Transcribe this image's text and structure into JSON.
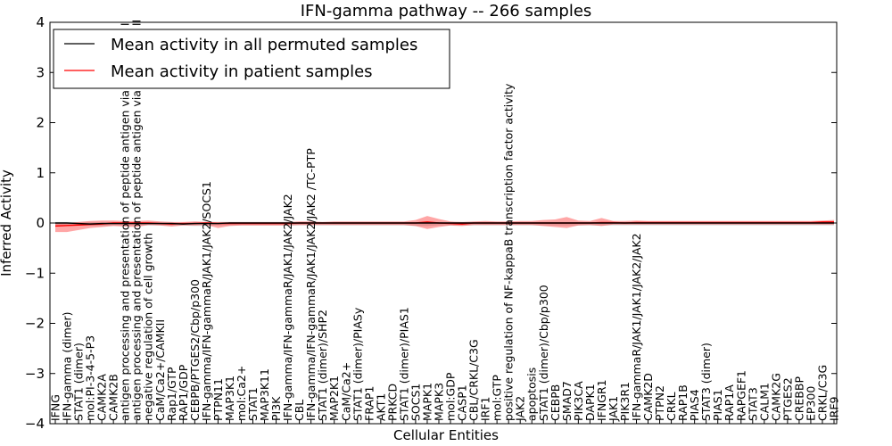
{
  "chart_data": {
    "type": "line",
    "title": "IFN-gamma pathway -- 266 samples",
    "xlabel": "Cellular Entities",
    "ylabel": "Inferred Activity",
    "ylim": [
      -4,
      4
    ],
    "yticks": [
      "−4",
      "−3",
      "−2",
      "−1",
      "0",
      "1",
      "2",
      "3",
      "4"
    ],
    "ytick_values": [
      -4,
      -3,
      -2,
      -1,
      0,
      1,
      2,
      3,
      4
    ],
    "legend": {
      "location": "top-left",
      "entries": [
        {
          "label": "Mean activity in all permuted samples",
          "color": "#000000"
        },
        {
          "label": "Mean activity in patient samples",
          "color": "#ff0000"
        }
      ]
    },
    "categories": [
      "IFNG",
      "IFN-gamma (dimer)",
      "STAT1 (dimer)",
      "mol:PI-3-4-5-P3",
      "CAMK2A",
      "CAMK2B",
      "antigen processing and presentation of peptide antigen via MHC class I",
      "antigen processing and presentation of peptide antigen via MHC class II",
      "negative regulation of cell growth",
      "CaM/Ca2+/CAMKII",
      "Rap1/GTP",
      "RAP1/GDP",
      "CEBPB/PTGES2/Cbp/p300",
      "IFN-gamma/IFN-gammaR/JAK1/JAK2/SOCS1",
      "PTPN11",
      "MAP3K1",
      "mol:Ca2+",
      "STAT1",
      "MAP3K11",
      "PI3K",
      "IFN-gamma/IFN-gammaR/JAK1/JAK2/JAK2",
      "CBL",
      "IFN-gamma/IFN-gammaR/JAK1/JAK2/JAK2 /TC-PTP",
      "STAT1 (dimer)/SHP2",
      "MAP2K1",
      "CaM/Ca2+",
      "STAT1 (dimer)/PIASy",
      "FRAP1",
      "AKT1",
      "PRKCD",
      "STAT1 (dimer)/PIAS1",
      "SOCS1",
      "MAPK1",
      "MAPK3",
      "mol:GDP",
      "CASP1",
      "CBL/CRKL/C3G",
      "IRF1",
      "mol:GTP",
      "positive regulation of NF-kappaB transcription factor activity",
      "JAK2",
      "apoptosis",
      "STAT1 (dimer)/Cbp/p300",
      "CEBPB",
      "SMAD7",
      "PIK3CA",
      "DAPK1",
      "IFNGR1",
      "JAK1",
      "PIK3R1",
      "IFN-gammaR/JAK1/JAK1/JAK2/JAK2",
      "CAMK2D",
      "PTPN2",
      "CRKL",
      "RAP1B",
      "PIAS4",
      "STAT3 (dimer)",
      "PIAS1",
      "RAP1A",
      "RAPGEF1",
      "STAT3",
      "CALM1",
      "CAMK2G",
      "PTGES2",
      "CREBBP",
      "EP300",
      "CRKL/C3G",
      "IRF9"
    ],
    "series": [
      {
        "name": "Mean activity in all permuted samples",
        "color": "#000000",
        "values": [
          0.0,
          0.0,
          -0.01,
          -0.02,
          -0.01,
          -0.01,
          -0.01,
          -0.01,
          -0.01,
          -0.01,
          -0.01,
          -0.02,
          -0.01,
          -0.01,
          -0.01,
          0.0,
          0.0,
          0.0,
          0.0,
          0.0,
          0.0,
          0.0,
          0.0,
          0.0,
          0.0,
          0.0,
          0.0,
          0.0,
          0.0,
          0.0,
          0.0,
          0.0,
          0.0,
          0.0,
          0.0,
          0.0,
          0.0,
          0.0,
          0.0,
          0.0,
          0.0,
          0.0,
          0.0,
          0.0,
          0.0,
          0.0,
          0.0,
          0.0,
          0.0,
          0.0,
          0.0,
          0.0,
          0.0,
          0.0,
          0.0,
          0.0,
          0.0,
          0.0,
          0.0,
          0.0,
          0.0,
          0.0,
          0.0,
          0.0,
          0.0,
          0.0,
          0.0,
          0.0
        ],
        "band_upper": [
          0.02,
          0.02,
          0.02,
          0.02,
          0.02,
          0.02,
          0.02,
          0.02,
          0.02,
          0.02,
          0.02,
          0.01,
          0.02,
          0.02,
          0.02,
          0.02,
          0.02,
          0.02,
          0.02,
          0.02,
          0.02,
          0.02,
          0.02,
          0.02,
          0.02,
          0.02,
          0.02,
          0.02,
          0.02,
          0.02,
          0.02,
          0.02,
          0.02,
          0.02,
          0.02,
          0.02,
          0.02,
          0.02,
          0.02,
          0.02,
          0.02,
          0.02,
          0.02,
          0.02,
          0.02,
          0.02,
          0.02,
          0.02,
          0.02,
          0.02,
          0.02,
          0.02,
          0.02,
          0.02,
          0.02,
          0.02,
          0.02,
          0.02,
          0.02,
          0.02,
          0.02,
          0.02,
          0.02,
          0.02,
          0.02,
          0.02,
          0.02,
          0.02
        ],
        "band_lower": [
          -0.04,
          -0.04,
          -0.05,
          -0.05,
          -0.06,
          -0.05,
          -0.05,
          -0.05,
          -0.05,
          -0.05,
          -0.05,
          -0.05,
          -0.06,
          -0.06,
          -0.05,
          -0.05,
          -0.05,
          -0.05,
          -0.05,
          -0.05,
          -0.05,
          -0.05,
          -0.05,
          -0.05,
          -0.05,
          -0.05,
          -0.05,
          -0.05,
          -0.05,
          -0.05,
          -0.05,
          -0.06,
          -0.06,
          -0.05,
          -0.05,
          -0.05,
          -0.05,
          -0.05,
          -0.05,
          -0.05,
          -0.05,
          -0.05,
          -0.05,
          -0.05,
          -0.05,
          -0.05,
          -0.05,
          -0.05,
          -0.05,
          -0.05,
          -0.05,
          -0.05,
          -0.05,
          -0.05,
          -0.05,
          -0.05,
          -0.05,
          -0.05,
          -0.05,
          -0.05,
          -0.05,
          -0.05,
          -0.05,
          -0.05,
          -0.05,
          -0.05,
          -0.05,
          -0.05
        ]
      },
      {
        "name": "Mean activity in patient samples",
        "color": "#ff0000",
        "values": [
          -0.06,
          -0.05,
          -0.04,
          -0.03,
          -0.02,
          0.0,
          0.0,
          0.0,
          0.0,
          -0.01,
          -0.02,
          -0.01,
          -0.01,
          0.0,
          -0.01,
          -0.01,
          -0.01,
          -0.01,
          -0.01,
          -0.01,
          -0.01,
          0.0,
          0.0,
          0.0,
          0.0,
          0.0,
          0.0,
          0.0,
          0.0,
          0.0,
          0.0,
          0.0,
          0.02,
          0.0,
          -0.01,
          -0.02,
          0.0,
          0.0,
          0.0,
          0.0,
          0.0,
          0.0,
          0.0,
          0.0,
          0.0,
          0.0,
          0.0,
          0.01,
          0.01,
          0.0,
          0.01,
          0.01,
          0.01,
          0.01,
          0.01,
          0.01,
          0.01,
          0.01,
          0.01,
          0.01,
          0.01,
          0.01,
          0.01,
          0.01,
          0.01,
          0.01,
          0.02,
          0.02
        ],
        "band_upper": [
          0.0,
          0.0,
          0.02,
          0.04,
          0.05,
          0.05,
          0.04,
          0.04,
          0.05,
          0.03,
          0.02,
          0.02,
          0.03,
          0.02,
          0.02,
          0.02,
          0.02,
          0.02,
          0.02,
          0.02,
          0.02,
          0.03,
          0.03,
          0.02,
          0.03,
          0.03,
          0.03,
          0.03,
          0.03,
          0.03,
          0.03,
          0.06,
          0.14,
          0.08,
          0.03,
          0.02,
          0.03,
          0.04,
          0.03,
          0.03,
          0.04,
          0.04,
          0.06,
          0.07,
          0.12,
          0.05,
          0.04,
          0.1,
          0.04,
          0.04,
          0.05,
          0.04,
          0.04,
          0.04,
          0.04,
          0.04,
          0.04,
          0.04,
          0.04,
          0.04,
          0.04,
          0.04,
          0.04,
          0.04,
          0.04,
          0.04,
          0.05,
          0.06
        ],
        "band_lower": [
          -0.18,
          -0.18,
          -0.14,
          -0.1,
          -0.08,
          -0.06,
          -0.07,
          -0.08,
          -0.04,
          -0.05,
          -0.07,
          -0.05,
          -0.05,
          -0.04,
          -0.1,
          -0.06,
          -0.05,
          -0.05,
          -0.05,
          -0.05,
          -0.05,
          -0.04,
          -0.04,
          -0.04,
          -0.04,
          -0.04,
          -0.04,
          -0.04,
          -0.04,
          -0.04,
          -0.04,
          -0.06,
          -0.12,
          -0.08,
          -0.05,
          -0.06,
          -0.04,
          -0.04,
          -0.04,
          -0.04,
          -0.04,
          -0.04,
          -0.06,
          -0.08,
          -0.1,
          -0.05,
          -0.04,
          -0.06,
          -0.03,
          -0.03,
          -0.03,
          -0.03,
          -0.03,
          -0.03,
          -0.03,
          -0.03,
          -0.03,
          -0.03,
          -0.03,
          -0.03,
          -0.03,
          -0.03,
          -0.03,
          -0.03,
          -0.03,
          -0.03,
          -0.03,
          -0.03
        ]
      }
    ]
  }
}
